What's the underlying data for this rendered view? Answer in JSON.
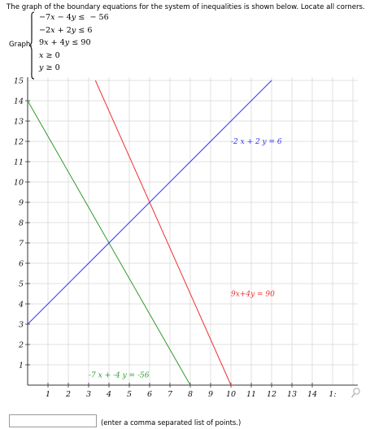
{
  "prompt": "The graph of the boundary equations for the system of inequalities is shown below. Locate all corners.",
  "graph_label": "Graph:",
  "system": [
    {
      "lhs_a": "−7",
      "lhs_b": " − 4",
      "op": " ≤ ",
      "rhs": " − 56"
    },
    {
      "lhs_a": "−2",
      "lhs_b": " + 2",
      "op": " ≤ ",
      "rhs": "6"
    },
    {
      "lhs_a": "9",
      "lhs_b": " + 4",
      "op": " ≤ ",
      "rhs": "90"
    },
    {
      "var": "x",
      "op": " ≥ ",
      "rhs": "0"
    },
    {
      "var": "y",
      "op": " ≥ ",
      "rhs": "0"
    }
  ],
  "answer": {
    "value": "",
    "hint": "(enter a comma separated list of points.)"
  },
  "icons": {
    "zoom": "magnifier-icon"
  },
  "colors": {
    "line1": "#2f9a2f",
    "line2": "#3535f0",
    "line3": "#ee3030",
    "grid": "#d8d8d8"
  },
  "chart_data": {
    "type": "line",
    "xlim": [
      0,
      15
    ],
    "ylim": [
      0,
      15
    ],
    "x_ticks": [
      1,
      2,
      3,
      4,
      5,
      6,
      7,
      8,
      9,
      10,
      11,
      12,
      13,
      14
    ],
    "x_tick_partial": "1:",
    "y_ticks": [
      1,
      2,
      3,
      4,
      5,
      6,
      7,
      8,
      9,
      10,
      11,
      12,
      13,
      14
    ],
    "y_tick_partial": "15",
    "grid": true,
    "series": [
      {
        "name": "-7 x + -4 y = -56",
        "color": "#2f9a2f",
        "points": [
          [
            0,
            14
          ],
          [
            8,
            0
          ]
        ]
      },
      {
        "name": "-2 x + 2 y = 6",
        "color": "#3535f0",
        "points": [
          [
            0,
            3
          ],
          [
            12,
            15
          ]
        ]
      },
      {
        "name": "9x+4y = 90",
        "color": "#ee3030",
        "points": [
          [
            10,
            0
          ],
          [
            3.3333,
            15
          ]
        ]
      }
    ],
    "labels": [
      {
        "text": "-7 x + -4 y = -56",
        "x": 3,
        "y": 0.5
      },
      {
        "text": "-2 x + 2 y = 6",
        "x": 10,
        "y": 12
      },
      {
        "text": "9x+4y = 90",
        "x": 10,
        "y": 4.5
      }
    ]
  }
}
